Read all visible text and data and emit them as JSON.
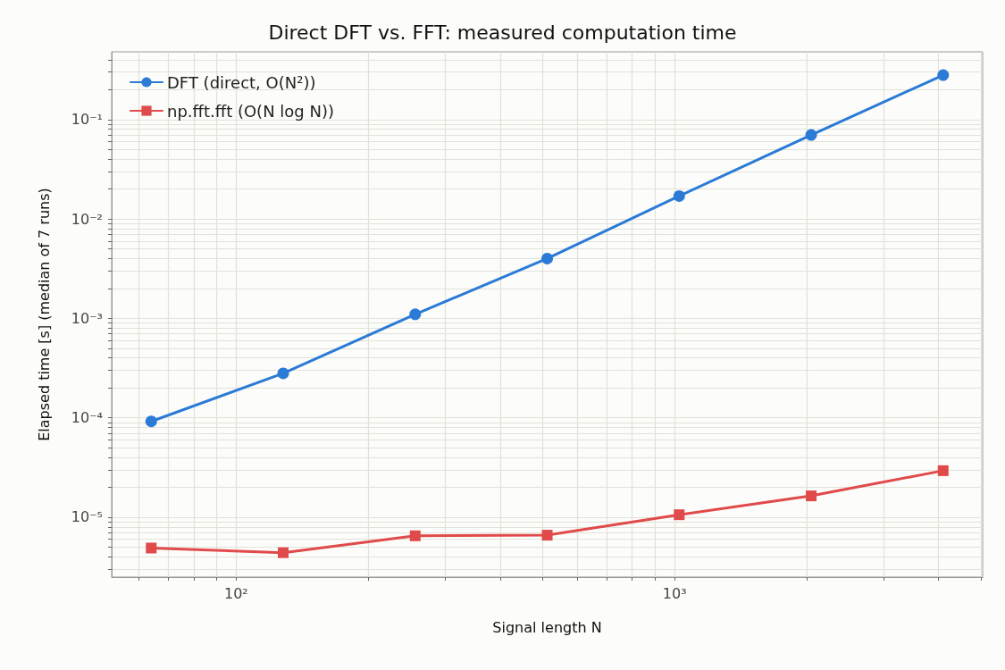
{
  "chart_data": {
    "type": "line",
    "title": "Direct DFT vs. FFT: measured computation time",
    "xlabel": "Signal length N",
    "ylabel": "Elapsed time [s] (median of 7 runs)",
    "x": [
      64,
      128,
      256,
      512,
      1024,
      2048,
      4096
    ],
    "series": [
      {
        "name": "DFT (direct, O(N²))",
        "color": "#2b7bd6",
        "marker": "circle",
        "values": [
          9.2e-05,
          0.00028,
          0.0011,
          0.004,
          0.017,
          0.07,
          0.28
        ]
      },
      {
        "name": "np.fft.fft (O(N log N))",
        "color": "#e04a4a",
        "marker": "square",
        "values": [
          4.9e-06,
          4.4e-06,
          6.5e-06,
          6.6e-06,
          1.06e-05,
          1.64e-05,
          2.94e-05
        ]
      }
    ],
    "log": "xy",
    "xlim": [
      52,
      5040
    ],
    "ylim": [
      2.5e-06,
      0.48
    ],
    "xticks": [
      {
        "value": 60,
        "label": null
      },
      {
        "value": 70,
        "label": null
      },
      {
        "value": 80,
        "label": null
      },
      {
        "value": 90,
        "label": null
      },
      {
        "value": 100,
        "label": "10²"
      },
      {
        "value": 200,
        "label": null
      },
      {
        "value": 300,
        "label": null
      },
      {
        "value": 400,
        "label": null
      },
      {
        "value": 500,
        "label": null
      },
      {
        "value": 600,
        "label": null
      },
      {
        "value": 700,
        "label": null
      },
      {
        "value": 800,
        "label": null
      },
      {
        "value": 900,
        "label": null
      },
      {
        "value": 1000,
        "label": "10³"
      },
      {
        "value": 2000,
        "label": null
      },
      {
        "value": 3000,
        "label": null
      },
      {
        "value": 4000,
        "label": null
      },
      {
        "value": 5000,
        "label": null
      }
    ],
    "yticks": [
      {
        "value": 3e-06,
        "label": null
      },
      {
        "value": 4e-06,
        "label": null
      },
      {
        "value": 5e-06,
        "label": null
      },
      {
        "value": 6e-06,
        "label": null
      },
      {
        "value": 7e-06,
        "label": null
      },
      {
        "value": 8e-06,
        "label": null
      },
      {
        "value": 9e-06,
        "label": null
      },
      {
        "value": 1e-05,
        "label": "10⁻⁵"
      },
      {
        "value": 2e-05,
        "label": null
      },
      {
        "value": 3e-05,
        "label": null
      },
      {
        "value": 4e-05,
        "label": null
      },
      {
        "value": 5e-05,
        "label": null
      },
      {
        "value": 6e-05,
        "label": null
      },
      {
        "value": 7e-05,
        "label": null
      },
      {
        "value": 8e-05,
        "label": null
      },
      {
        "value": 9e-05,
        "label": null
      },
      {
        "value": 0.0001,
        "label": "10⁻⁴"
      },
      {
        "value": 0.0002,
        "label": null
      },
      {
        "value": 0.0003,
        "label": null
      },
      {
        "value": 0.0004,
        "label": null
      },
      {
        "value": 0.0005,
        "label": null
      },
      {
        "value": 0.0006,
        "label": null
      },
      {
        "value": 0.0007,
        "label": null
      },
      {
        "value": 0.0008,
        "label": null
      },
      {
        "value": 0.0009,
        "label": null
      },
      {
        "value": 0.001,
        "label": "10⁻³"
      },
      {
        "value": 0.002,
        "label": null
      },
      {
        "value": 0.003,
        "label": null
      },
      {
        "value": 0.004,
        "label": null
      },
      {
        "value": 0.005,
        "label": null
      },
      {
        "value": 0.006,
        "label": null
      },
      {
        "value": 0.007,
        "label": null
      },
      {
        "value": 0.008,
        "label": null
      },
      {
        "value": 0.009,
        "label": null
      },
      {
        "value": 0.01,
        "label": "10⁻²"
      },
      {
        "value": 0.02,
        "label": null
      },
      {
        "value": 0.03,
        "label": null
      },
      {
        "value": 0.04,
        "label": null
      },
      {
        "value": 0.05,
        "label": null
      },
      {
        "value": 0.06,
        "label": null
      },
      {
        "value": 0.07,
        "label": null
      },
      {
        "value": 0.08,
        "label": null
      },
      {
        "value": 0.09,
        "label": null
      },
      {
        "value": 0.1,
        "label": "10⁻¹"
      },
      {
        "value": 0.2,
        "label": null
      },
      {
        "value": 0.3,
        "label": null
      },
      {
        "value": 0.4,
        "label": null
      }
    ],
    "grid": true,
    "legend": "top left",
    "line_style": "solid"
  }
}
